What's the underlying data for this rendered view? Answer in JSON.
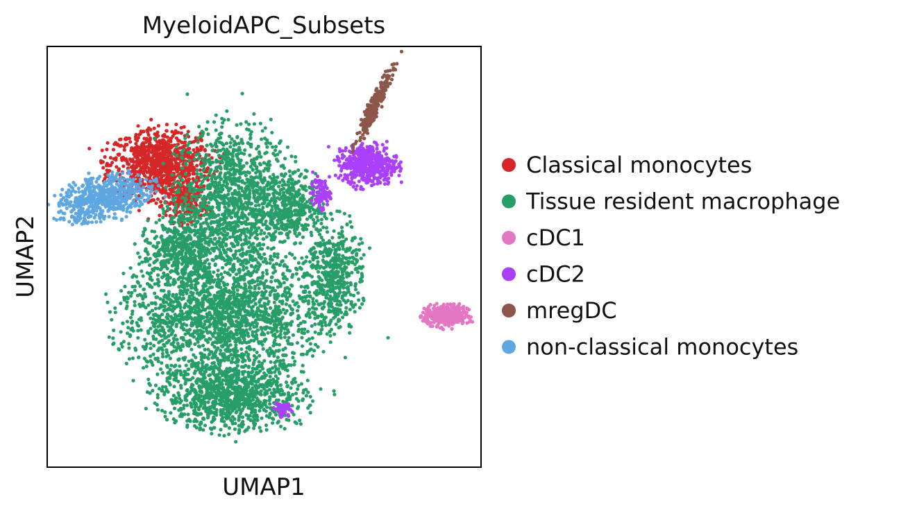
{
  "chart_data": {
    "type": "scatter",
    "title": "MyeloidAPC_Subsets",
    "xlabel": "UMAP1",
    "ylabel": "UMAP2",
    "xlim": [
      0,
      10
    ],
    "ylim": [
      0,
      10
    ],
    "grid": false,
    "ticks": false,
    "legend_position": "right",
    "series": [
      {
        "name": "Classical monocytes",
        "color": "#d62728",
        "regions": [
          {
            "cx": 2.6,
            "cy": 7.2,
            "rx": 1.3,
            "ry": 0.9,
            "n": 900
          },
          {
            "cx": 3.2,
            "cy": 6.3,
            "rx": 0.6,
            "ry": 0.5,
            "n": 200
          }
        ]
      },
      {
        "name": "Tissue resident macrophage",
        "color": "#279e68",
        "regions": [
          {
            "cx": 4.3,
            "cy": 6.3,
            "rx": 1.5,
            "ry": 2.0,
            "n": 1300
          },
          {
            "cx": 4.0,
            "cy": 3.6,
            "rx": 2.5,
            "ry": 1.6,
            "n": 1900
          },
          {
            "cx": 4.3,
            "cy": 1.7,
            "rx": 1.8,
            "ry": 0.9,
            "n": 1000
          },
          {
            "cx": 6.6,
            "cy": 4.6,
            "rx": 0.7,
            "ry": 1.4,
            "n": 500
          },
          {
            "cx": 3.0,
            "cy": 5.2,
            "rx": 0.9,
            "ry": 0.8,
            "n": 400
          },
          {
            "cx": 5.7,
            "cy": 6.2,
            "rx": 0.7,
            "ry": 0.9,
            "n": 300
          }
        ]
      },
      {
        "name": "cDC1",
        "color": "#e377c2",
        "regions": [
          {
            "cx": 9.2,
            "cy": 3.6,
            "rx": 0.55,
            "ry": 0.3,
            "n": 350
          }
        ]
      },
      {
        "name": "cDC2",
        "color": "#aa40fc",
        "regions": [
          {
            "cx": 7.4,
            "cy": 7.2,
            "rx": 0.75,
            "ry": 0.55,
            "n": 450
          },
          {
            "cx": 6.3,
            "cy": 6.5,
            "rx": 0.25,
            "ry": 0.4,
            "n": 80
          },
          {
            "cx": 5.4,
            "cy": 1.4,
            "rx": 0.2,
            "ry": 0.2,
            "n": 60
          }
        ]
      },
      {
        "name": "mregDC",
        "color": "#8c564b",
        "regions": [
          {
            "cx": 7.55,
            "cy": 8.6,
            "rx": 0.15,
            "ry": 1.1,
            "rot": -25,
            "n": 250
          }
        ]
      },
      {
        "name": "non-classical monocytes",
        "color": "#5ea7e0",
        "regions": [
          {
            "cx": 1.3,
            "cy": 6.4,
            "rx": 1.2,
            "ry": 0.55,
            "rot": 15,
            "n": 600
          }
        ]
      }
    ]
  }
}
